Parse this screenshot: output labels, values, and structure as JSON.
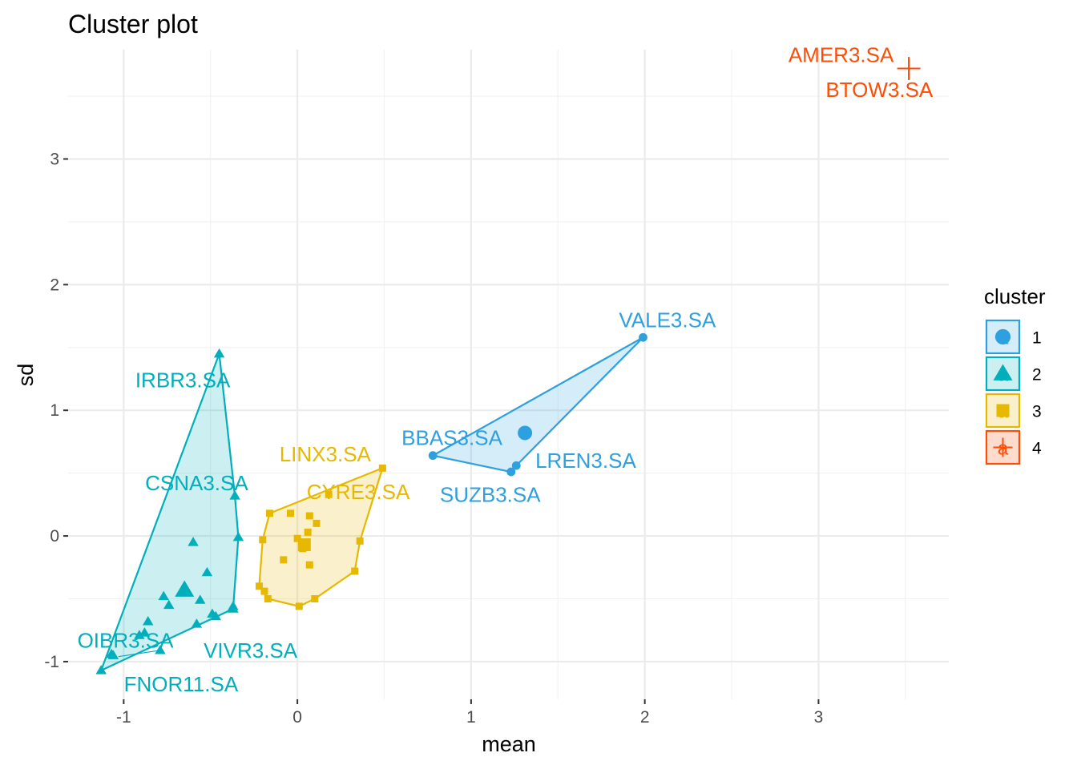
{
  "chart_data": {
    "type": "scatter",
    "title": "Cluster plot",
    "xlabel": "mean",
    "ylabel": "sd",
    "xlim": [
      -1.32,
      3.75
    ],
    "ylim": [
      -1.3,
      3.87
    ],
    "x_ticks": [
      -1,
      0,
      1,
      2,
      3
    ],
    "x_tick_labels": [
      "-1",
      "0",
      "1",
      "2",
      "3"
    ],
    "y_ticks": [
      -1,
      0,
      1,
      2,
      3
    ],
    "y_tick_labels": [
      "-1",
      "0",
      "1",
      "2",
      "3"
    ],
    "grid": true,
    "legend": {
      "title": "cluster",
      "position": "right",
      "entries": [
        "1",
        "2",
        "3",
        "4"
      ]
    },
    "colors": {
      "1": "#2E9FDF",
      "2": "#00AFBB",
      "3": "#E7B800",
      "4": "#FC4E07"
    },
    "clusters": [
      {
        "name": "1",
        "shape": "circle",
        "center": [
          1.31,
          0.82
        ],
        "hull": [
          [
            0.78,
            0.64
          ],
          [
            1.23,
            0.51
          ],
          [
            1.26,
            0.56
          ],
          [
            1.99,
            1.58
          ]
        ],
        "points": [
          {
            "x": 1.99,
            "y": 1.58,
            "label": "VALE3.SA"
          },
          {
            "x": 0.78,
            "y": 0.64,
            "label": "BBAS3.SA"
          },
          {
            "x": 1.26,
            "y": 0.56,
            "label": "LREN3.SA"
          },
          {
            "x": 1.23,
            "y": 0.51,
            "label": "SUZB3.SA"
          }
        ]
      },
      {
        "name": "2",
        "shape": "triangle",
        "center": [
          -0.65,
          -0.43
        ],
        "hull": [
          [
            -1.13,
            -1.07
          ],
          [
            -0.37,
            -0.58
          ],
          [
            -0.34,
            -0.01
          ],
          [
            -0.36,
            0.32
          ],
          [
            -0.45,
            1.45
          ]
        ],
        "points": [
          {
            "x": -0.45,
            "y": 1.45,
            "label": "IRBR3.SA"
          },
          {
            "x": -0.36,
            "y": 0.32,
            "label": "CSNA3.SA"
          },
          {
            "x": -1.06,
            "y": -0.95,
            "label": "OIBR3.SA"
          },
          {
            "x": -0.79,
            "y": -0.91,
            "label": "VIVR3.SA"
          },
          {
            "x": -1.13,
            "y": -1.07,
            "label": "FNOR11.SA"
          },
          {
            "x": -0.34,
            "y": -0.01
          },
          {
            "x": -0.37,
            "y": -0.56
          },
          {
            "x": -0.37,
            "y": -0.58
          },
          {
            "x": -0.6,
            "y": -0.05
          },
          {
            "x": -0.52,
            "y": -0.29
          },
          {
            "x": -0.77,
            "y": -0.48
          },
          {
            "x": -0.74,
            "y": -0.55
          },
          {
            "x": -0.56,
            "y": -0.51
          },
          {
            "x": -0.49,
            "y": -0.62
          },
          {
            "x": -0.47,
            "y": -0.64
          },
          {
            "x": -0.58,
            "y": -0.7
          },
          {
            "x": -0.86,
            "y": -0.68
          },
          {
            "x": -0.88,
            "y": -0.77
          },
          {
            "x": -0.91,
            "y": -0.79
          },
          {
            "x": -1.07,
            "y": -0.94
          }
        ]
      },
      {
        "name": "3",
        "shape": "square",
        "center": [
          0.04,
          -0.07
        ],
        "hull": [
          [
            0.01,
            -0.56
          ],
          [
            0.1,
            -0.5
          ],
          [
            0.33,
            -0.28
          ],
          [
            0.36,
            -0.04
          ],
          [
            0.49,
            0.54
          ],
          [
            -0.16,
            0.18
          ],
          [
            -0.2,
            -0.03
          ],
          [
            -0.22,
            -0.4
          ],
          [
            -0.17,
            -0.5
          ]
        ],
        "points": [
          {
            "x": 0.49,
            "y": 0.54,
            "label": "LINX3.SA"
          },
          {
            "x": 0.18,
            "y": 0.33,
            "label": "CYRE3.SA"
          },
          {
            "x": -0.16,
            "y": 0.18
          },
          {
            "x": -0.04,
            "y": 0.18
          },
          {
            "x": 0.07,
            "y": 0.16
          },
          {
            "x": 0.11,
            "y": 0.1
          },
          {
            "x": 0.06,
            "y": 0.03
          },
          {
            "x": 0.0,
            "y": -0.02
          },
          {
            "x": 0.05,
            "y": -0.05
          },
          {
            "x": 0.03,
            "y": -0.1
          },
          {
            "x": -0.2,
            "y": -0.03
          },
          {
            "x": 0.36,
            "y": -0.04
          },
          {
            "x": 0.33,
            "y": -0.28
          },
          {
            "x": -0.08,
            "y": -0.19
          },
          {
            "x": 0.07,
            "y": -0.23
          },
          {
            "x": -0.22,
            "y": -0.4
          },
          {
            "x": -0.19,
            "y": -0.44
          },
          {
            "x": -0.17,
            "y": -0.5
          },
          {
            "x": 0.1,
            "y": -0.5
          },
          {
            "x": 0.01,
            "y": -0.56
          }
        ]
      },
      {
        "name": "4",
        "shape": "cross",
        "center": [
          3.52,
          3.72
        ],
        "hull": [],
        "points": [
          {
            "x": 3.52,
            "y": 3.72,
            "label": "AMER3.SA"
          },
          {
            "x": 3.52,
            "y": 3.72,
            "label": "BTOW3.SA"
          }
        ]
      }
    ],
    "annotations": [
      {
        "text": "VALE3.SA",
        "cluster": "1",
        "x": 2.13,
        "y": 1.72
      },
      {
        "text": "BBAS3.SA",
        "cluster": "1",
        "x": 0.89,
        "y": 0.78
      },
      {
        "text": "LREN3.SA",
        "cluster": "1",
        "x": 1.66,
        "y": 0.6
      },
      {
        "text": "SUZB3.SA",
        "cluster": "1",
        "x": 1.11,
        "y": 0.33
      },
      {
        "text": "IRBR3.SA",
        "cluster": "2",
        "x": -0.66,
        "y": 1.24
      },
      {
        "text": "CSNA3.SA",
        "cluster": "2",
        "x": -0.58,
        "y": 0.42
      },
      {
        "text": "OIBR3.SA",
        "cluster": "2",
        "x": -0.99,
        "y": -0.83
      },
      {
        "text": "VIVR3.SA",
        "cluster": "2",
        "x": -0.27,
        "y": -0.91
      },
      {
        "text": "FNOR11.SA",
        "cluster": "2",
        "x": -0.67,
        "y": -1.18
      },
      {
        "text": "LINX3.SA",
        "cluster": "3",
        "x": 0.16,
        "y": 0.65
      },
      {
        "text": "CYRE3.SA",
        "cluster": "3",
        "x": 0.35,
        "y": 0.35
      },
      {
        "text": "AMER3.SA",
        "cluster": "4",
        "x": 3.13,
        "y": 3.83
      },
      {
        "text": "BTOW3.SA",
        "cluster": "4",
        "x": 3.35,
        "y": 3.55
      }
    ],
    "label_leader": {
      "cluster": "2",
      "from": [
        -0.79,
        -0.91
      ],
      "to": [
        -1.03,
        -0.96
      ]
    }
  }
}
